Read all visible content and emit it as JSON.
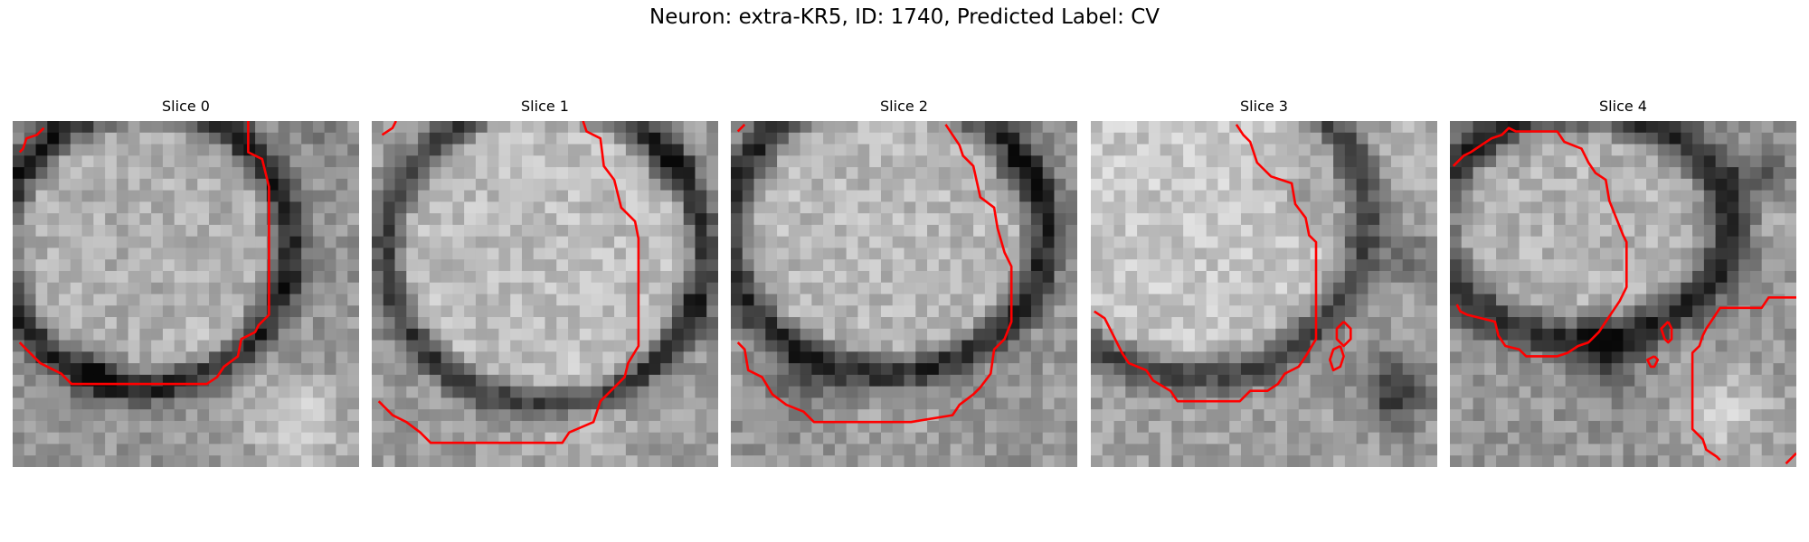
{
  "figure": {
    "title": "Neuron: extra-KR5, ID: 1740, Predicted Label: CV"
  },
  "panels": [
    {
      "title": "Slice 0"
    },
    {
      "title": "Slice 1"
    },
    {
      "title": "Slice 2"
    },
    {
      "title": "Slice 3"
    },
    {
      "title": "Slice 4"
    }
  ],
  "colors": {
    "contour": "#ff0000",
    "background": "#ffffff"
  }
}
